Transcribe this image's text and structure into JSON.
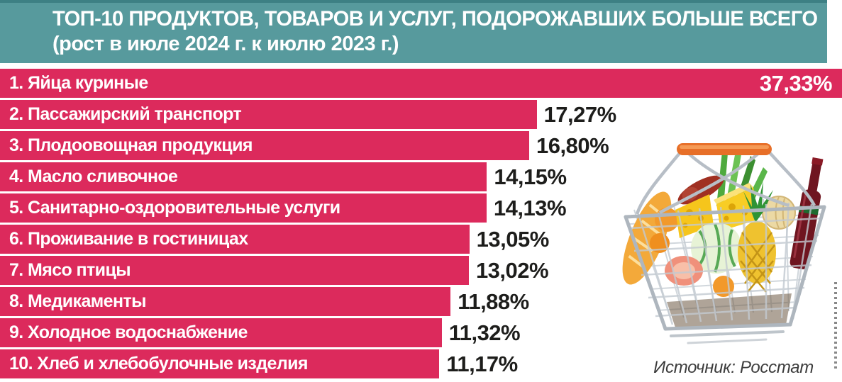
{
  "header": {
    "title": "ТОП-10 ПРОДУКТОВ, ТОВАРОВ И УСЛУГ, ПОДОРОЖАВШИХ БОЛЬШЕ ВСЕГО",
    "subtitle": "(рост в июле 2024 г. к июлю 2023 г.)"
  },
  "source_label": "Источник: Росстат",
  "icons": {
    "basket_illustration": "grocery-basket"
  },
  "colors": {
    "header_bg": "#579a9d",
    "header_stripe": "#3d8084",
    "bar": "#dc2a5c",
    "bar_label_text": "#ffffff",
    "value_text_outside": "#1d1d1b",
    "value_text_inside": "#ffffff",
    "source_text": "#3c3c3c",
    "background": "#ffffff"
  },
  "chart_data": {
    "type": "bar",
    "orientation": "horizontal",
    "title": "ТОП-10 ПРОДУКТОВ, ТОВАРОВ И УСЛУГ, ПОДОРОЖАВШИХ БОЛЬШЕ ВСЕГО",
    "subtitle": "(рост в июле 2024 г. к июлю 2023 г.)",
    "unit": "%",
    "categories": [
      "Яйца куриные",
      "Пассажирский транспорт",
      "Плодоовощная продукция",
      "Масло сливочное",
      "Санитарно-оздоровительные услуги",
      "Проживание в гостиницах",
      "Мясо птицы",
      "Медикаменты",
      "Холодное водоснабжение",
      "Хлеб и хлебобулочные изделия"
    ],
    "row_labels": [
      "1. Яйца куриные",
      "2. Пассажирский транспорт",
      "3. Плодоовощная продукция",
      "4. Масло сливочное",
      "5. Санитарно-оздоровительные услуги",
      "6. Проживание в гостиницах",
      "7. Мясо птицы",
      "8. Медикаменты",
      "9. Холодное водоснабжение",
      "10. Хлеб и хлебобулочные изделия"
    ],
    "values": [
      37.33,
      17.27,
      16.8,
      14.15,
      14.13,
      13.05,
      13.02,
      11.88,
      11.32,
      11.17
    ],
    "value_labels": [
      "37,33%",
      "17,27%",
      "16,80%",
      "14,15%",
      "14,13%",
      "13,05%",
      "13,02%",
      "11,88%",
      "11,32%",
      "11,17%"
    ],
    "xlim": [
      0,
      37.33
    ],
    "grid": false,
    "legend": false,
    "bar_color": "#dc2a5c",
    "source": "Источник: Росстат"
  }
}
